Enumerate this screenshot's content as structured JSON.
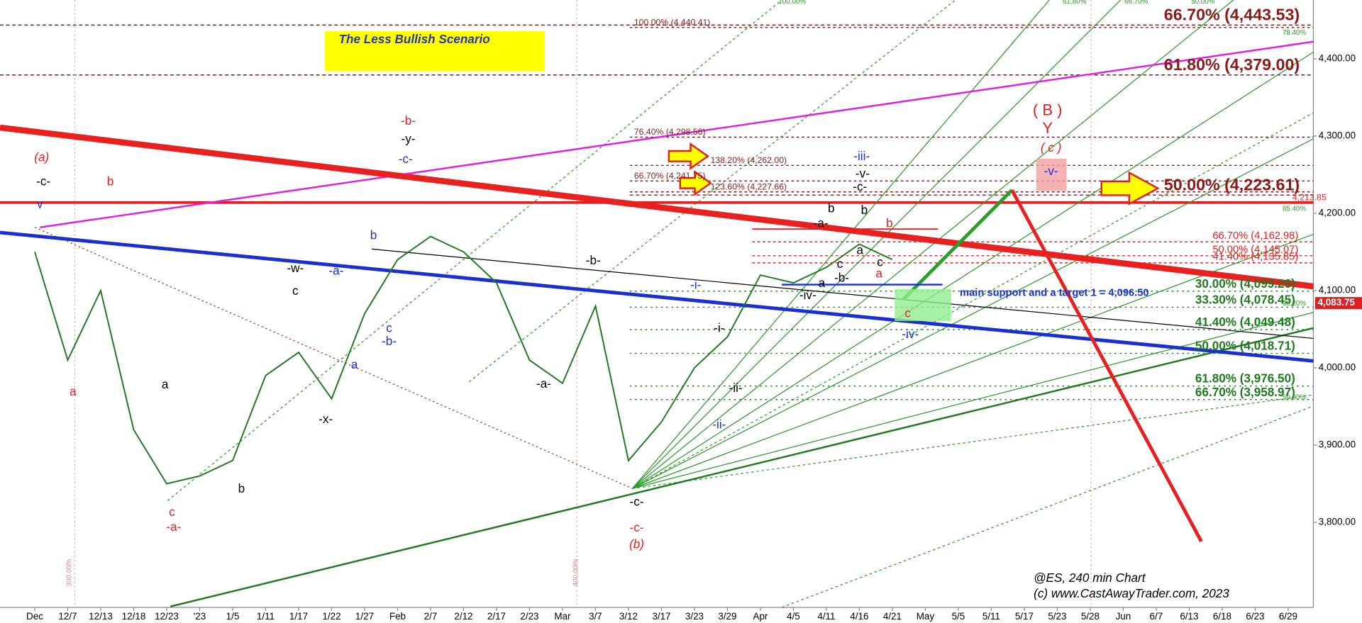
{
  "chart_data": {
    "type": "line",
    "title": "The Less Bullish Scenario",
    "footer": [
      "@ES, 240 min Chart",
      "(c) www.CastAwayTrader.com, 2023"
    ],
    "categories": [
      "Dec",
      "12/7",
      "12/13",
      "12/18",
      "12/23",
      "'23",
      "1/5",
      "1/11",
      "1/17",
      "1/22",
      "1/27",
      "Feb",
      "2/7",
      "2/12",
      "2/17",
      "2/23",
      "Mar",
      "3/7",
      "3/12",
      "3/17",
      "3/23",
      "3/29",
      "Apr",
      "4/5",
      "4/11",
      "4/16",
      "4/21",
      "May",
      "5/5",
      "5/11",
      "5/17",
      "5/23",
      "5/28",
      "Jun",
      "6/7",
      "6/13",
      "6/18",
      "6/23",
      "6/29"
    ],
    "series": [
      {
        "name": "ES",
        "color": "#1f7a1f",
        "values": [
          4150,
          4010,
          4100,
          3920,
          3850,
          3860,
          3880,
          3990,
          4020,
          3960,
          4070,
          4140,
          4170,
          4150,
          4110,
          4010,
          3980,
          4080,
          3880,
          3930,
          4000,
          4040,
          4120,
          4110,
          4130,
          4160,
          4140,
          null,
          null,
          null,
          null,
          null,
          null,
          null,
          null,
          null,
          null,
          null,
          null
        ]
      }
    ],
    "ylim": [
      3690,
      4476
    ],
    "yticks": [
      {
        "value": 3800,
        "label": "3,800.00"
      },
      {
        "value": 3900,
        "label": "3,900.00"
      },
      {
        "value": 4000,
        "label": "4,000.00"
      },
      {
        "value": 4100,
        "label": "4,100.00"
      },
      {
        "value": 4200,
        "label": "4,200.00"
      },
      {
        "value": 4300,
        "label": "4,300.00"
      },
      {
        "value": 4400,
        "label": "4,400.00"
      }
    ],
    "last_price": {
      "value": 4083.75,
      "label": "4,083.75"
    },
    "levels": [
      {
        "label": "66.70% (4,443.53)",
        "value": 4443.53,
        "color": "#8b1a1a"
      },
      {
        "label": "61.80% (4,379.00)",
        "value": 4379.0,
        "color": "#8b1a1a"
      },
      {
        "label": "50.00% (4,223.61)",
        "value": 4223.61,
        "color": "#8b1a1a"
      },
      {
        "label": "100.00% (4,440.41)",
        "value": 4440.41,
        "color": "#8b1a1a"
      },
      {
        "label": "76.40% (4,298.56)",
        "value": 4298.56,
        "color": "#8b1a1a"
      },
      {
        "label": "138.20% (4,262.00)",
        "value": 4262.0,
        "color": "#8b1a1a"
      },
      {
        "label": "66.70% (4,241.75)",
        "value": 4241.75,
        "color": "#8b1a1a"
      },
      {
        "label": "123.60% (4,227.66)",
        "value": 4227.66,
        "color": "#8b1a1a"
      },
      {
        "label": "4,213.85",
        "value": 4213.85,
        "color": "#e02020"
      },
      {
        "label": "66.70% (4,162.98)",
        "value": 4162.98,
        "color": "#e02020"
      },
      {
        "label": "50.00% (4,145.07)",
        "value": 4145.07,
        "color": "#e02020"
      },
      {
        "label": "41.40% (4,135.85)",
        "value": 4135.85,
        "color": "#e02020"
      },
      {
        "label": "30.00% (4,099.26)",
        "value": 4099.26,
        "color": "#1f7a1f"
      },
      {
        "label": "33.30% (4,078.45)",
        "value": 4078.45,
        "color": "#1f7a1f"
      },
      {
        "label": "41.40% (4,049.48)",
        "value": 4049.48,
        "color": "#1f7a1f"
      },
      {
        "label": "50.00% (4,018.71)",
        "value": 4018.71,
        "color": "#1f7a1f"
      },
      {
        "label": "61.80% (3,976.50)",
        "value": 3976.5,
        "color": "#1f7a1f"
      },
      {
        "label": "66.70% (3,958.97)",
        "value": 3958.97,
        "color": "#1f7a1f"
      }
    ],
    "annotations": [
      {
        "text": "(a)",
        "color": "#e02020"
      },
      {
        "text": "-c-",
        "color": "#000"
      },
      {
        "text": "v",
        "color": "#1a2fd0"
      },
      {
        "text": "b",
        "color": "#e02020"
      },
      {
        "text": "a",
        "color": "#e02020"
      },
      {
        "text": "a",
        "color": "#000"
      },
      {
        "text": "c",
        "color": "#e02020"
      },
      {
        "text": "-a-",
        "color": "#e02020"
      },
      {
        "text": "b",
        "color": "#000"
      },
      {
        "text": "-w-",
        "color": "#000"
      },
      {
        "text": "c",
        "color": "#000"
      },
      {
        "text": "-a-",
        "color": "#1a2fd0"
      },
      {
        "text": "b",
        "color": "#1a2fd0"
      },
      {
        "text": "-x-",
        "color": "#000"
      },
      {
        "text": "a",
        "color": "#1a2fd0"
      },
      {
        "text": "c",
        "color": "#1a2fd0"
      },
      {
        "text": "-b-",
        "color": "#1a2fd0"
      },
      {
        "text": "-b-",
        "color": "#e02020"
      },
      {
        "text": "-y-",
        "color": "#000"
      },
      {
        "text": "-c-",
        "color": "#1a2fd0"
      },
      {
        "text": "-b-",
        "color": "#000"
      },
      {
        "text": "-a-",
        "color": "#000"
      },
      {
        "text": "-c-",
        "color": "#000"
      },
      {
        "text": "-c-",
        "color": "#e02020"
      },
      {
        "text": "(b)",
        "color": "#e02020"
      },
      {
        "text": "-i-",
        "color": "#1a2fd0"
      },
      {
        "text": "-i-",
        "color": "#000"
      },
      {
        "text": "-ii-",
        "color": "#000"
      },
      {
        "text": "-ii-",
        "color": "#1a2fd0"
      },
      {
        "text": "-iii-",
        "color": "#1a2fd0"
      },
      {
        "text": "-v-",
        "color": "#000"
      },
      {
        "text": "-c-",
        "color": "#000"
      },
      {
        "text": "b",
        "color": "#000"
      },
      {
        "text": "b",
        "color": "#000"
      },
      {
        "text": "-a-",
        "color": "#000"
      },
      {
        "text": "b",
        "color": "#e02020"
      },
      {
        "text": "a",
        "color": "#000"
      },
      {
        "text": "c",
        "color": "#000"
      },
      {
        "text": "c",
        "color": "#000"
      },
      {
        "text": "-b-",
        "color": "#000"
      },
      {
        "text": "a",
        "color": "#e02020"
      },
      {
        "text": "a",
        "color": "#000"
      },
      {
        "text": "-iv-",
        "color": "#000"
      },
      {
        "text": "c",
        "color": "#e02020"
      },
      {
        "text": "-iv-",
        "color": "#1a2fd0"
      },
      {
        "text": "( B )",
        "color": "#e02020"
      },
      {
        "text": "Y",
        "color": "#e02020"
      },
      {
        "text": "( c )",
        "color": "#e02020"
      },
      {
        "text": "-v-",
        "color": "#1a2fd0"
      },
      {
        "text": "main support and a target 1 = 4,096.50",
        "color": "#1a2fd0"
      }
    ],
    "minor_labels": [
      "85.40%",
      "78.40%",
      "90.20%",
      "50.00%",
      "100.00%",
      "61.80%",
      "66.70%",
      "50.00%",
      "300.00%",
      "400.00%"
    ]
  }
}
